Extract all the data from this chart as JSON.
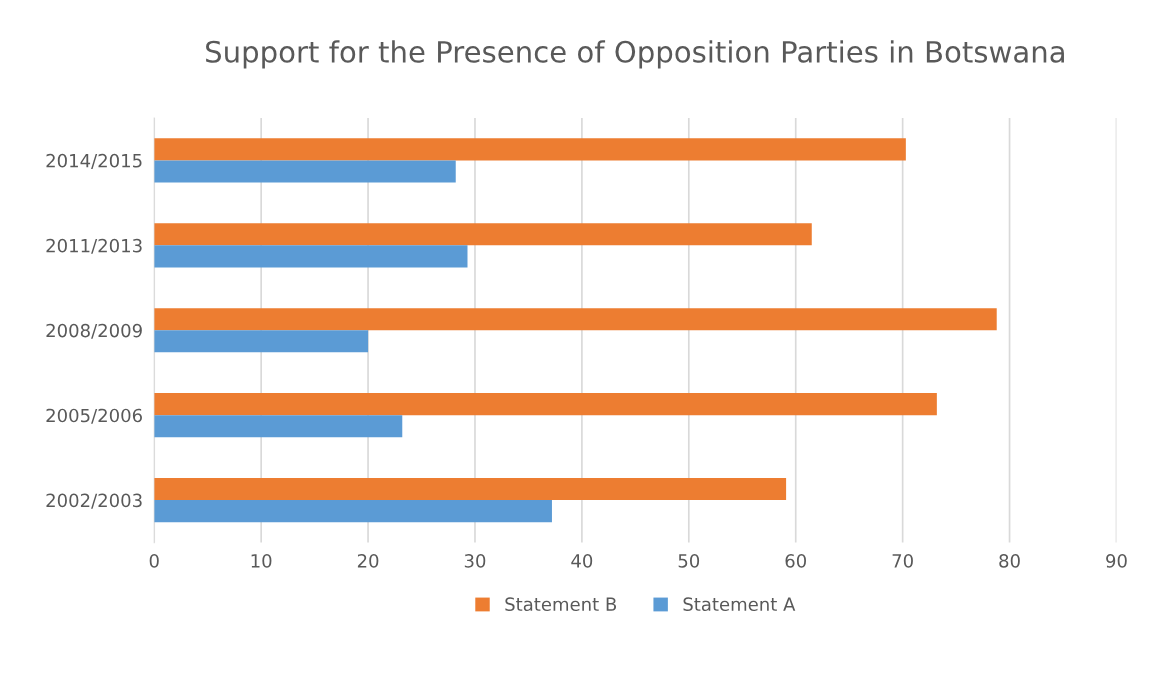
{
  "chart_data": {
    "type": "bar",
    "orientation": "horizontal",
    "title": "Support for the Presence of Opposition Parties in Botswana",
    "categories": [
      "2014/2015",
      "2011/2013",
      "2008/2009",
      "2005/2006",
      "2002/2003"
    ],
    "series": [
      {
        "name": "Statement B",
        "color": "#ed7d31",
        "values": [
          70.3,
          61.5,
          78.8,
          73.2,
          59.1
        ]
      },
      {
        "name": "Statement A",
        "color": "#5b9bd5",
        "values": [
          28.2,
          29.3,
          20.0,
          23.2,
          37.2
        ]
      }
    ],
    "xlim": [
      0,
      90
    ],
    "xticks": [
      0,
      10,
      20,
      30,
      40,
      50,
      60,
      70,
      80,
      90
    ],
    "grid": "x",
    "legend": "bottom"
  }
}
